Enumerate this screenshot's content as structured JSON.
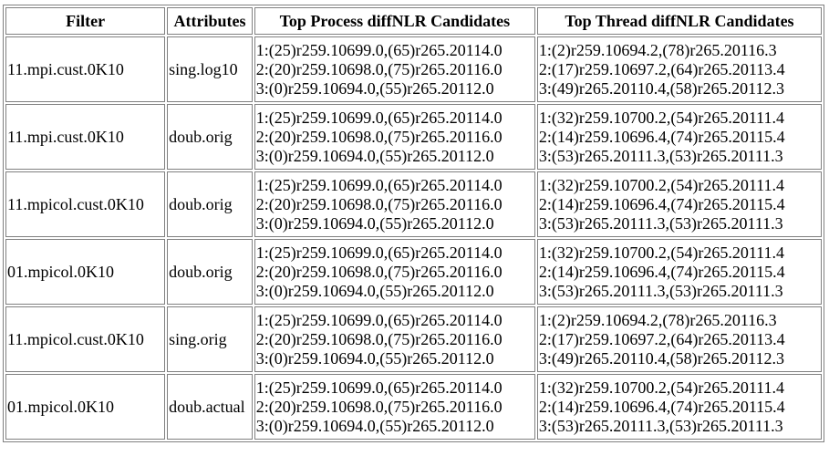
{
  "table": {
    "headers": {
      "filter": "Filter",
      "attributes": "Attributes",
      "process": "Top Process diffNLR Candidates",
      "thread": "Top Thread diffNLR Candidates"
    },
    "rows": [
      {
        "filter": "11.mpi.cust.0K10",
        "attributes": "sing.log10",
        "process": [
          "1:(25)r259.10699.0,(65)r265.20114.0",
          "2:(20)r259.10698.0,(75)r265.20116.0",
          "3:(0)r259.10694.0,(55)r265.20112.0"
        ],
        "thread": [
          "1:(2)r259.10694.2,(78)r265.20116.3",
          "2:(17)r259.10697.2,(64)r265.20113.4",
          "3:(49)r265.20110.4,(58)r265.20112.3"
        ]
      },
      {
        "filter": "11.mpi.cust.0K10",
        "attributes": "doub.orig",
        "process": [
          "1:(25)r259.10699.0,(65)r265.20114.0",
          "2:(20)r259.10698.0,(75)r265.20116.0",
          "3:(0)r259.10694.0,(55)r265.20112.0"
        ],
        "thread": [
          "1:(32)r259.10700.2,(54)r265.20111.4",
          "2:(14)r259.10696.4,(74)r265.20115.4",
          "3:(53)r265.20111.3,(53)r265.20111.3"
        ]
      },
      {
        "filter": "11.mpicol.cust.0K10",
        "attributes": "doub.orig",
        "process": [
          "1:(25)r259.10699.0,(65)r265.20114.0",
          "2:(20)r259.10698.0,(75)r265.20116.0",
          "3:(0)r259.10694.0,(55)r265.20112.0"
        ],
        "thread": [
          "1:(32)r259.10700.2,(54)r265.20111.4",
          "2:(14)r259.10696.4,(74)r265.20115.4",
          "3:(53)r265.20111.3,(53)r265.20111.3"
        ]
      },
      {
        "filter": "01.mpicol.0K10",
        "attributes": "doub.orig",
        "process": [
          "1:(25)r259.10699.0,(65)r265.20114.0",
          "2:(20)r259.10698.0,(75)r265.20116.0",
          "3:(0)r259.10694.0,(55)r265.20112.0"
        ],
        "thread": [
          "1:(32)r259.10700.2,(54)r265.20111.4",
          "2:(14)r259.10696.4,(74)r265.20115.4",
          "3:(53)r265.20111.3,(53)r265.20111.3"
        ]
      },
      {
        "filter": "11.mpicol.cust.0K10",
        "attributes": "sing.orig",
        "process": [
          "1:(25)r259.10699.0,(65)r265.20114.0",
          "2:(20)r259.10698.0,(75)r265.20116.0",
          "3:(0)r259.10694.0,(55)r265.20112.0"
        ],
        "thread": [
          "1:(2)r259.10694.2,(78)r265.20116.3",
          "2:(17)r259.10697.2,(64)r265.20113.4",
          "3:(49)r265.20110.4,(58)r265.20112.3"
        ]
      },
      {
        "filter": "01.mpicol.0K10",
        "attributes": "doub.actual",
        "process": [
          "1:(25)r259.10699.0,(65)r265.20114.0",
          "2:(20)r259.10698.0,(75)r265.20116.0",
          "3:(0)r259.10694.0,(55)r265.20112.0"
        ],
        "thread": [
          "1:(32)r259.10700.2,(54)r265.20111.4",
          "2:(14)r259.10696.4,(74)r265.20115.4",
          "3:(53)r265.20111.3,(53)r265.20111.3"
        ]
      }
    ]
  }
}
